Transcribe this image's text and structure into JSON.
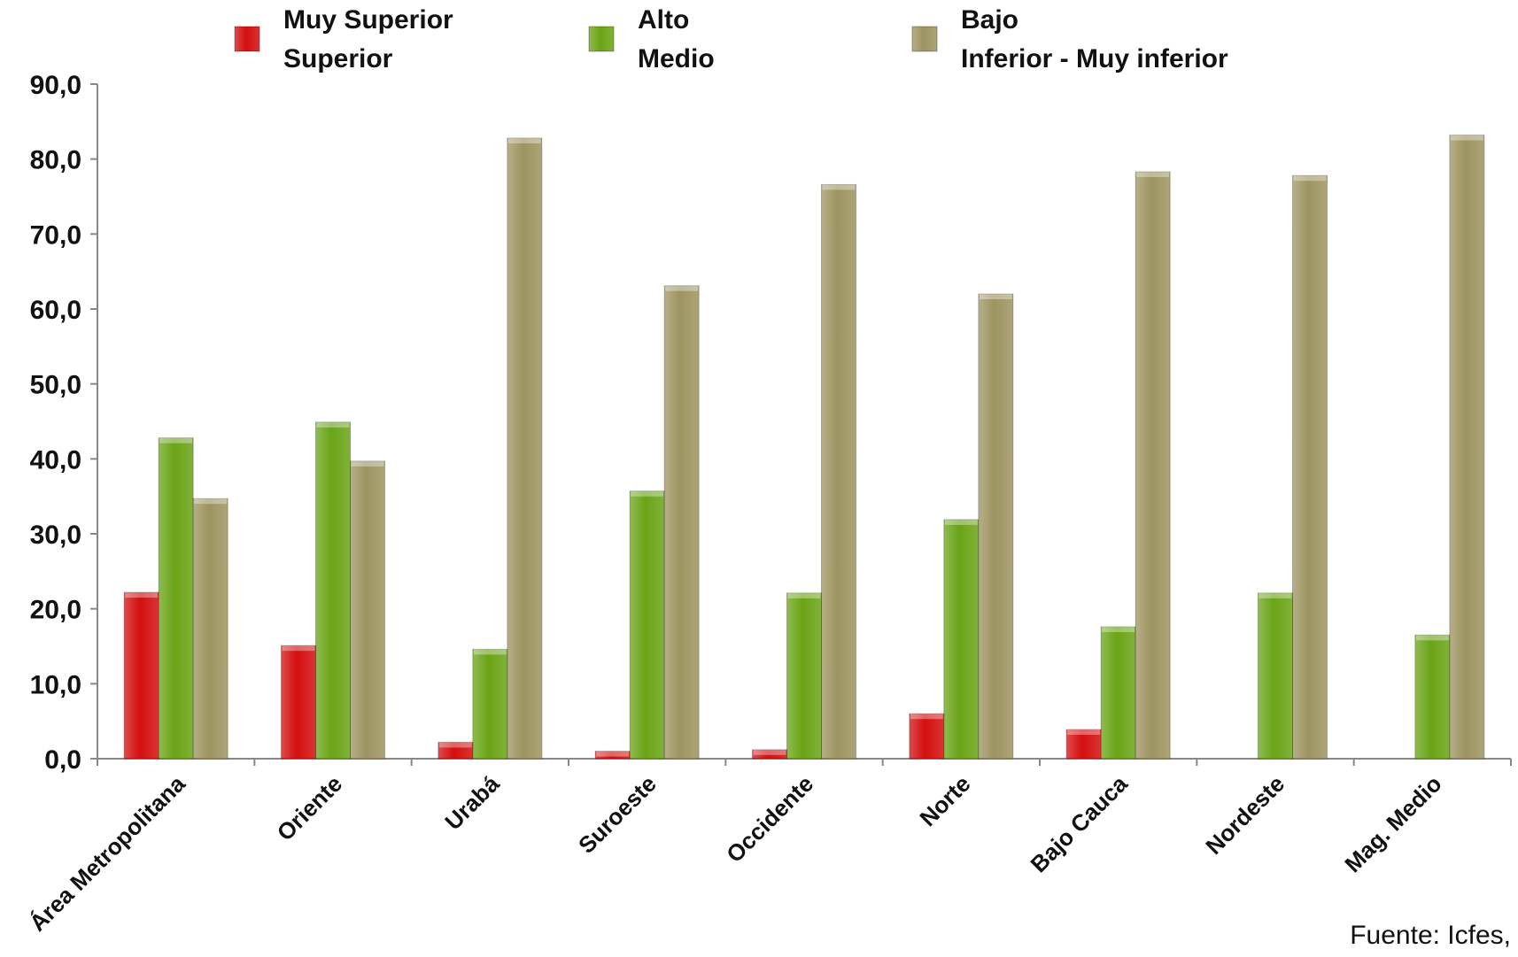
{
  "chart_data": {
    "type": "bar",
    "categories": [
      "Área Metropolitana",
      "Oriente",
      "Urabá",
      "Suroeste",
      "Occidente",
      "Norte",
      "Bajo Cauca",
      "Nordeste",
      "Mag. Medio"
    ],
    "series": [
      {
        "name": "Muy Superior Superior",
        "legend_lines": [
          "Muy Superior",
          "Superior"
        ],
        "color": "#d40f0f",
        "values": [
          22.2,
          15.1,
          2.2,
          1.0,
          1.2,
          6.0,
          3.9,
          0.0,
          0.0
        ]
      },
      {
        "name": "Alto Medio",
        "legend_lines": [
          "Alto",
          "Medio"
        ],
        "color": "#6aa416",
        "values": [
          42.8,
          44.9,
          14.6,
          35.7,
          22.1,
          31.9,
          17.6,
          22.1,
          16.5
        ]
      },
      {
        "name": "Bajo Inferior - Muy inferior",
        "legend_lines": [
          "Bajo",
          "Inferior  - Muy inferior"
        ],
        "color": "#9e9461",
        "values": [
          34.7,
          39.7,
          82.8,
          63.1,
          76.6,
          62.0,
          78.3,
          77.8,
          83.2
        ]
      }
    ],
    "yticks": [
      "0,0",
      "10,0",
      "20,0",
      "30,0",
      "40,0",
      "50,0",
      "60,0",
      "70,0",
      "80,0",
      "90,0"
    ],
    "ylim": [
      0,
      90
    ],
    "title": "",
    "xlabel": "",
    "ylabel": "",
    "legend_position": "top",
    "grid": false
  },
  "source": "Fuente: Icfes,"
}
